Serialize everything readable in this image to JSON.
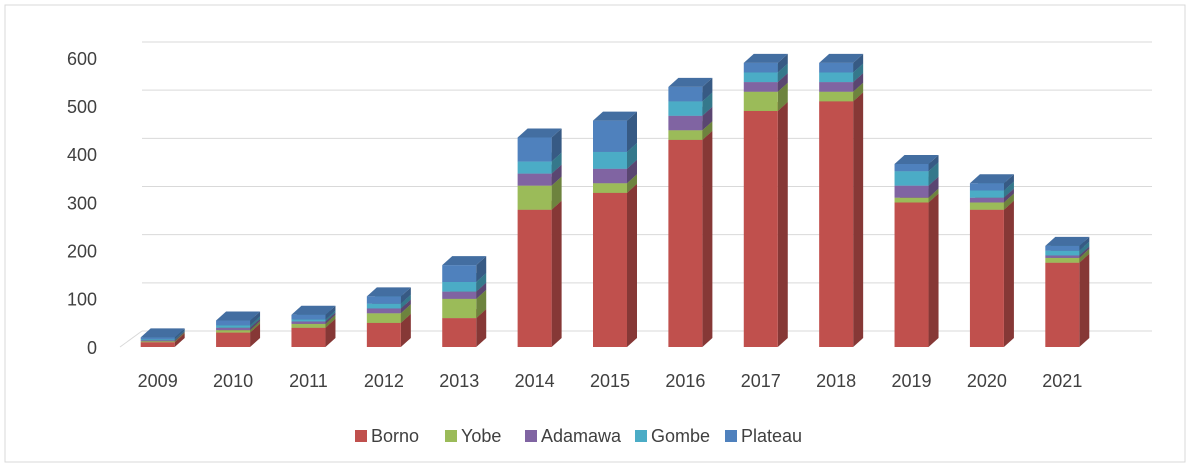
{
  "chart_data": {
    "type": "stacked_bar_3d",
    "categories": [
      "2009",
      "2010",
      "2011",
      "2012",
      "2013",
      "2014",
      "2015",
      "2016",
      "2017",
      "2018",
      "2019",
      "2020",
      "2021"
    ],
    "series": [
      {
        "name": "Borno",
        "color": "#c0504d",
        "values": [
          10,
          30,
          40,
          50,
          60,
          285,
          320,
          430,
          490,
          510,
          300,
          285,
          175
        ]
      },
      {
        "name": "Yobe",
        "color": "#9bbb59",
        "values": [
          2,
          5,
          8,
          20,
          40,
          50,
          20,
          20,
          40,
          20,
          10,
          15,
          10
        ]
      },
      {
        "name": "Adamawa",
        "color": "#8064a2",
        "values": [
          2,
          5,
          5,
          10,
          15,
          25,
          30,
          30,
          20,
          20,
          25,
          10,
          5
        ]
      },
      {
        "name": "Gombe",
        "color": "#4bacc6",
        "values": [
          2,
          5,
          4,
          10,
          20,
          25,
          35,
          30,
          20,
          20,
          30,
          15,
          10
        ]
      },
      {
        "name": "Plateau",
        "color": "#4f81bd",
        "values": [
          4,
          10,
          10,
          15,
          35,
          50,
          65,
          30,
          20,
          20,
          15,
          15,
          10
        ]
      }
    ],
    "ylim": [
      0,
      600
    ],
    "yticks": [
      0,
      100,
      200,
      300,
      400,
      500,
      600
    ],
    "grid": true,
    "legend": "bottom"
  }
}
